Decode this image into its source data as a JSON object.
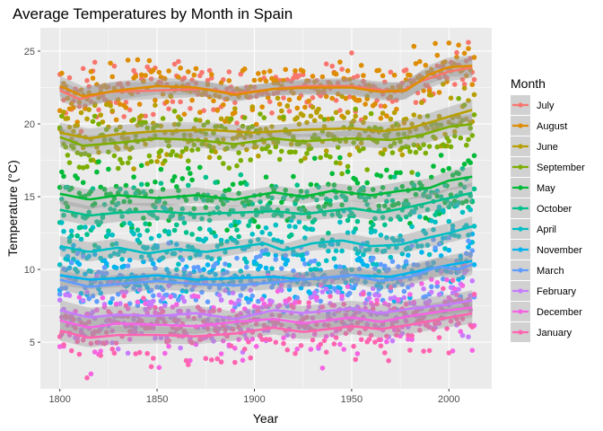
{
  "chart_data": {
    "type": "scatter",
    "title": "Average Temperatures by Month in Spain",
    "xlabel": "Year",
    "ylabel": "Temperature (°C)",
    "xlim": [
      1790,
      2022
    ],
    "ylim": [
      1.8,
      26.6
    ],
    "xticks": [
      1800,
      1850,
      1900,
      1950,
      2000
    ],
    "yticks": [
      5,
      10,
      15,
      20,
      25
    ],
    "grid": true,
    "smoothing": "loess with confidence band",
    "legend": {
      "title": "Month",
      "placement": "right"
    },
    "year_range": [
      1800,
      2013
    ],
    "series": [
      {
        "name": "July",
        "color": "#F8766D",
        "trend": [
          [
            1800,
            22.3
          ],
          [
            1810,
            21.7
          ],
          [
            1825,
            22.2
          ],
          [
            1850,
            22.3
          ],
          [
            1875,
            22.4
          ],
          [
            1890,
            22.1
          ],
          [
            1910,
            22.4
          ],
          [
            1925,
            22.6
          ],
          [
            1950,
            22.6
          ],
          [
            1960,
            22.4
          ],
          [
            1975,
            22.2
          ],
          [
            1985,
            22.9
          ],
          [
            2000,
            23.6
          ],
          [
            2013,
            23.9
          ]
        ],
        "spread": 1.0
      },
      {
        "name": "August",
        "color": "#DE8C00",
        "trend": [
          [
            1800,
            22.6
          ],
          [
            1812,
            21.9
          ],
          [
            1830,
            22.3
          ],
          [
            1850,
            22.6
          ],
          [
            1870,
            22.5
          ],
          [
            1890,
            22.0
          ],
          [
            1910,
            22.4
          ],
          [
            1930,
            22.5
          ],
          [
            1950,
            22.5
          ],
          [
            1965,
            22.2
          ],
          [
            1978,
            22.3
          ],
          [
            1990,
            23.4
          ],
          [
            2000,
            23.9
          ],
          [
            2013,
            24.0
          ]
        ],
        "spread": 1.0
      },
      {
        "name": "June",
        "color": "#B79F00",
        "trend": [
          [
            1800,
            19.4
          ],
          [
            1815,
            19.0
          ],
          [
            1830,
            19.3
          ],
          [
            1850,
            19.5
          ],
          [
            1875,
            19.6
          ],
          [
            1900,
            19.4
          ],
          [
            1925,
            19.6
          ],
          [
            1950,
            19.7
          ],
          [
            1965,
            19.5
          ],
          [
            1980,
            19.7
          ],
          [
            1990,
            20.1
          ],
          [
            2000,
            20.5
          ],
          [
            2013,
            21.0
          ]
        ],
        "spread": 1.1
      },
      {
        "name": "September",
        "color": "#7CAE00",
        "trend": [
          [
            1800,
            19.1
          ],
          [
            1812,
            18.5
          ],
          [
            1830,
            18.7
          ],
          [
            1850,
            19.0
          ],
          [
            1870,
            18.9
          ],
          [
            1890,
            18.6
          ],
          [
            1910,
            19.0
          ],
          [
            1925,
            18.8
          ],
          [
            1950,
            19.0
          ],
          [
            1970,
            18.9
          ],
          [
            1985,
            19.2
          ],
          [
            2000,
            19.8
          ],
          [
            2013,
            20.0
          ]
        ],
        "spread": 1.0
      },
      {
        "name": "May",
        "color": "#00BA38",
        "trend": [
          [
            1800,
            15.2
          ],
          [
            1815,
            14.8
          ],
          [
            1830,
            15.1
          ],
          [
            1850,
            14.9
          ],
          [
            1870,
            15.1
          ],
          [
            1890,
            14.8
          ],
          [
            1910,
            15.3
          ],
          [
            1925,
            15.0
          ],
          [
            1940,
            15.4
          ],
          [
            1960,
            15.1
          ],
          [
            1975,
            15.4
          ],
          [
            1990,
            15.6
          ],
          [
            2000,
            16.1
          ],
          [
            2013,
            16.4
          ]
        ],
        "spread": 1.1
      },
      {
        "name": "October",
        "color": "#00C08B",
        "trend": [
          [
            1800,
            14.1
          ],
          [
            1815,
            13.7
          ],
          [
            1830,
            13.9
          ],
          [
            1850,
            14.0
          ],
          [
            1870,
            13.8
          ],
          [
            1890,
            13.9
          ],
          [
            1910,
            14.0
          ],
          [
            1925,
            13.8
          ],
          [
            1950,
            14.2
          ],
          [
            1965,
            13.9
          ],
          [
            1980,
            14.3
          ],
          [
            2000,
            14.9
          ],
          [
            2013,
            15.3
          ]
        ],
        "spread": 1.0
      },
      {
        "name": "April",
        "color": "#00BFC4",
        "trend": [
          [
            1800,
            11.6
          ],
          [
            1815,
            11.2
          ],
          [
            1830,
            11.5
          ],
          [
            1845,
            11.1
          ],
          [
            1860,
            11.4
          ],
          [
            1875,
            11.2
          ],
          [
            1890,
            11.5
          ],
          [
            1905,
            11.8
          ],
          [
            1915,
            11.3
          ],
          [
            1930,
            11.8
          ],
          [
            1945,
            12.0
          ],
          [
            1960,
            11.6
          ],
          [
            1975,
            11.7
          ],
          [
            1990,
            12.2
          ],
          [
            2000,
            12.5
          ],
          [
            2013,
            13.0
          ]
        ],
        "spread": 1.1
      },
      {
        "name": "November",
        "color": "#00B4F0",
        "trend": [
          [
            1800,
            9.6
          ],
          [
            1815,
            9.3
          ],
          [
            1830,
            9.4
          ],
          [
            1850,
            9.6
          ],
          [
            1870,
            9.3
          ],
          [
            1890,
            9.4
          ],
          [
            1910,
            9.5
          ],
          [
            1925,
            9.3
          ],
          [
            1950,
            9.6
          ],
          [
            1970,
            9.5
          ],
          [
            1985,
            9.9
          ],
          [
            2000,
            10.3
          ],
          [
            2013,
            10.6
          ]
        ],
        "spread": 1.0
      },
      {
        "name": "March",
        "color": "#619CFF",
        "trend": [
          [
            1800,
            9.3
          ],
          [
            1815,
            8.8
          ],
          [
            1830,
            9.0
          ],
          [
            1850,
            9.2
          ],
          [
            1870,
            9.0
          ],
          [
            1890,
            8.9
          ],
          [
            1910,
            9.1
          ],
          [
            1925,
            9.3
          ],
          [
            1950,
            9.6
          ],
          [
            1965,
            9.2
          ],
          [
            1980,
            9.5
          ],
          [
            1995,
            10.2
          ],
          [
            2005,
            10.0
          ],
          [
            2013,
            10.4
          ]
        ],
        "spread": 1.1
      },
      {
        "name": "February",
        "color": "#C77CFF",
        "trend": [
          [
            1800,
            7.2
          ],
          [
            1815,
            6.7
          ],
          [
            1830,
            6.9
          ],
          [
            1850,
            6.8
          ],
          [
            1870,
            7.0
          ],
          [
            1890,
            6.6
          ],
          [
            1910,
            7.2
          ],
          [
            1925,
            7.0
          ],
          [
            1950,
            7.3
          ],
          [
            1965,
            7.0
          ],
          [
            1980,
            7.3
          ],
          [
            2000,
            7.6
          ],
          [
            2013,
            7.9
          ]
        ],
        "spread": 1.2
      },
      {
        "name": "December",
        "color": "#F564E3",
        "trend": [
          [
            1800,
            6.5
          ],
          [
            1815,
            6.0
          ],
          [
            1830,
            6.3
          ],
          [
            1850,
            6.2
          ],
          [
            1870,
            6.1
          ],
          [
            1890,
            6.4
          ],
          [
            1910,
            6.6
          ],
          [
            1925,
            6.3
          ],
          [
            1950,
            6.7
          ],
          [
            1965,
            6.4
          ],
          [
            1980,
            6.8
          ],
          [
            2000,
            7.2
          ],
          [
            2013,
            7.4
          ]
        ],
        "spread": 1.2
      },
      {
        "name": "January",
        "color": "#FF64B0",
        "trend": [
          [
            1800,
            5.8
          ],
          [
            1815,
            5.3
          ],
          [
            1830,
            5.5
          ],
          [
            1850,
            5.5
          ],
          [
            1870,
            5.4
          ],
          [
            1890,
            5.6
          ],
          [
            1910,
            6.0
          ],
          [
            1925,
            5.7
          ],
          [
            1950,
            6.1
          ],
          [
            1965,
            5.9
          ],
          [
            1980,
            6.2
          ],
          [
            2000,
            6.7
          ],
          [
            2013,
            7.0
          ]
        ],
        "spread": 1.2
      }
    ]
  }
}
